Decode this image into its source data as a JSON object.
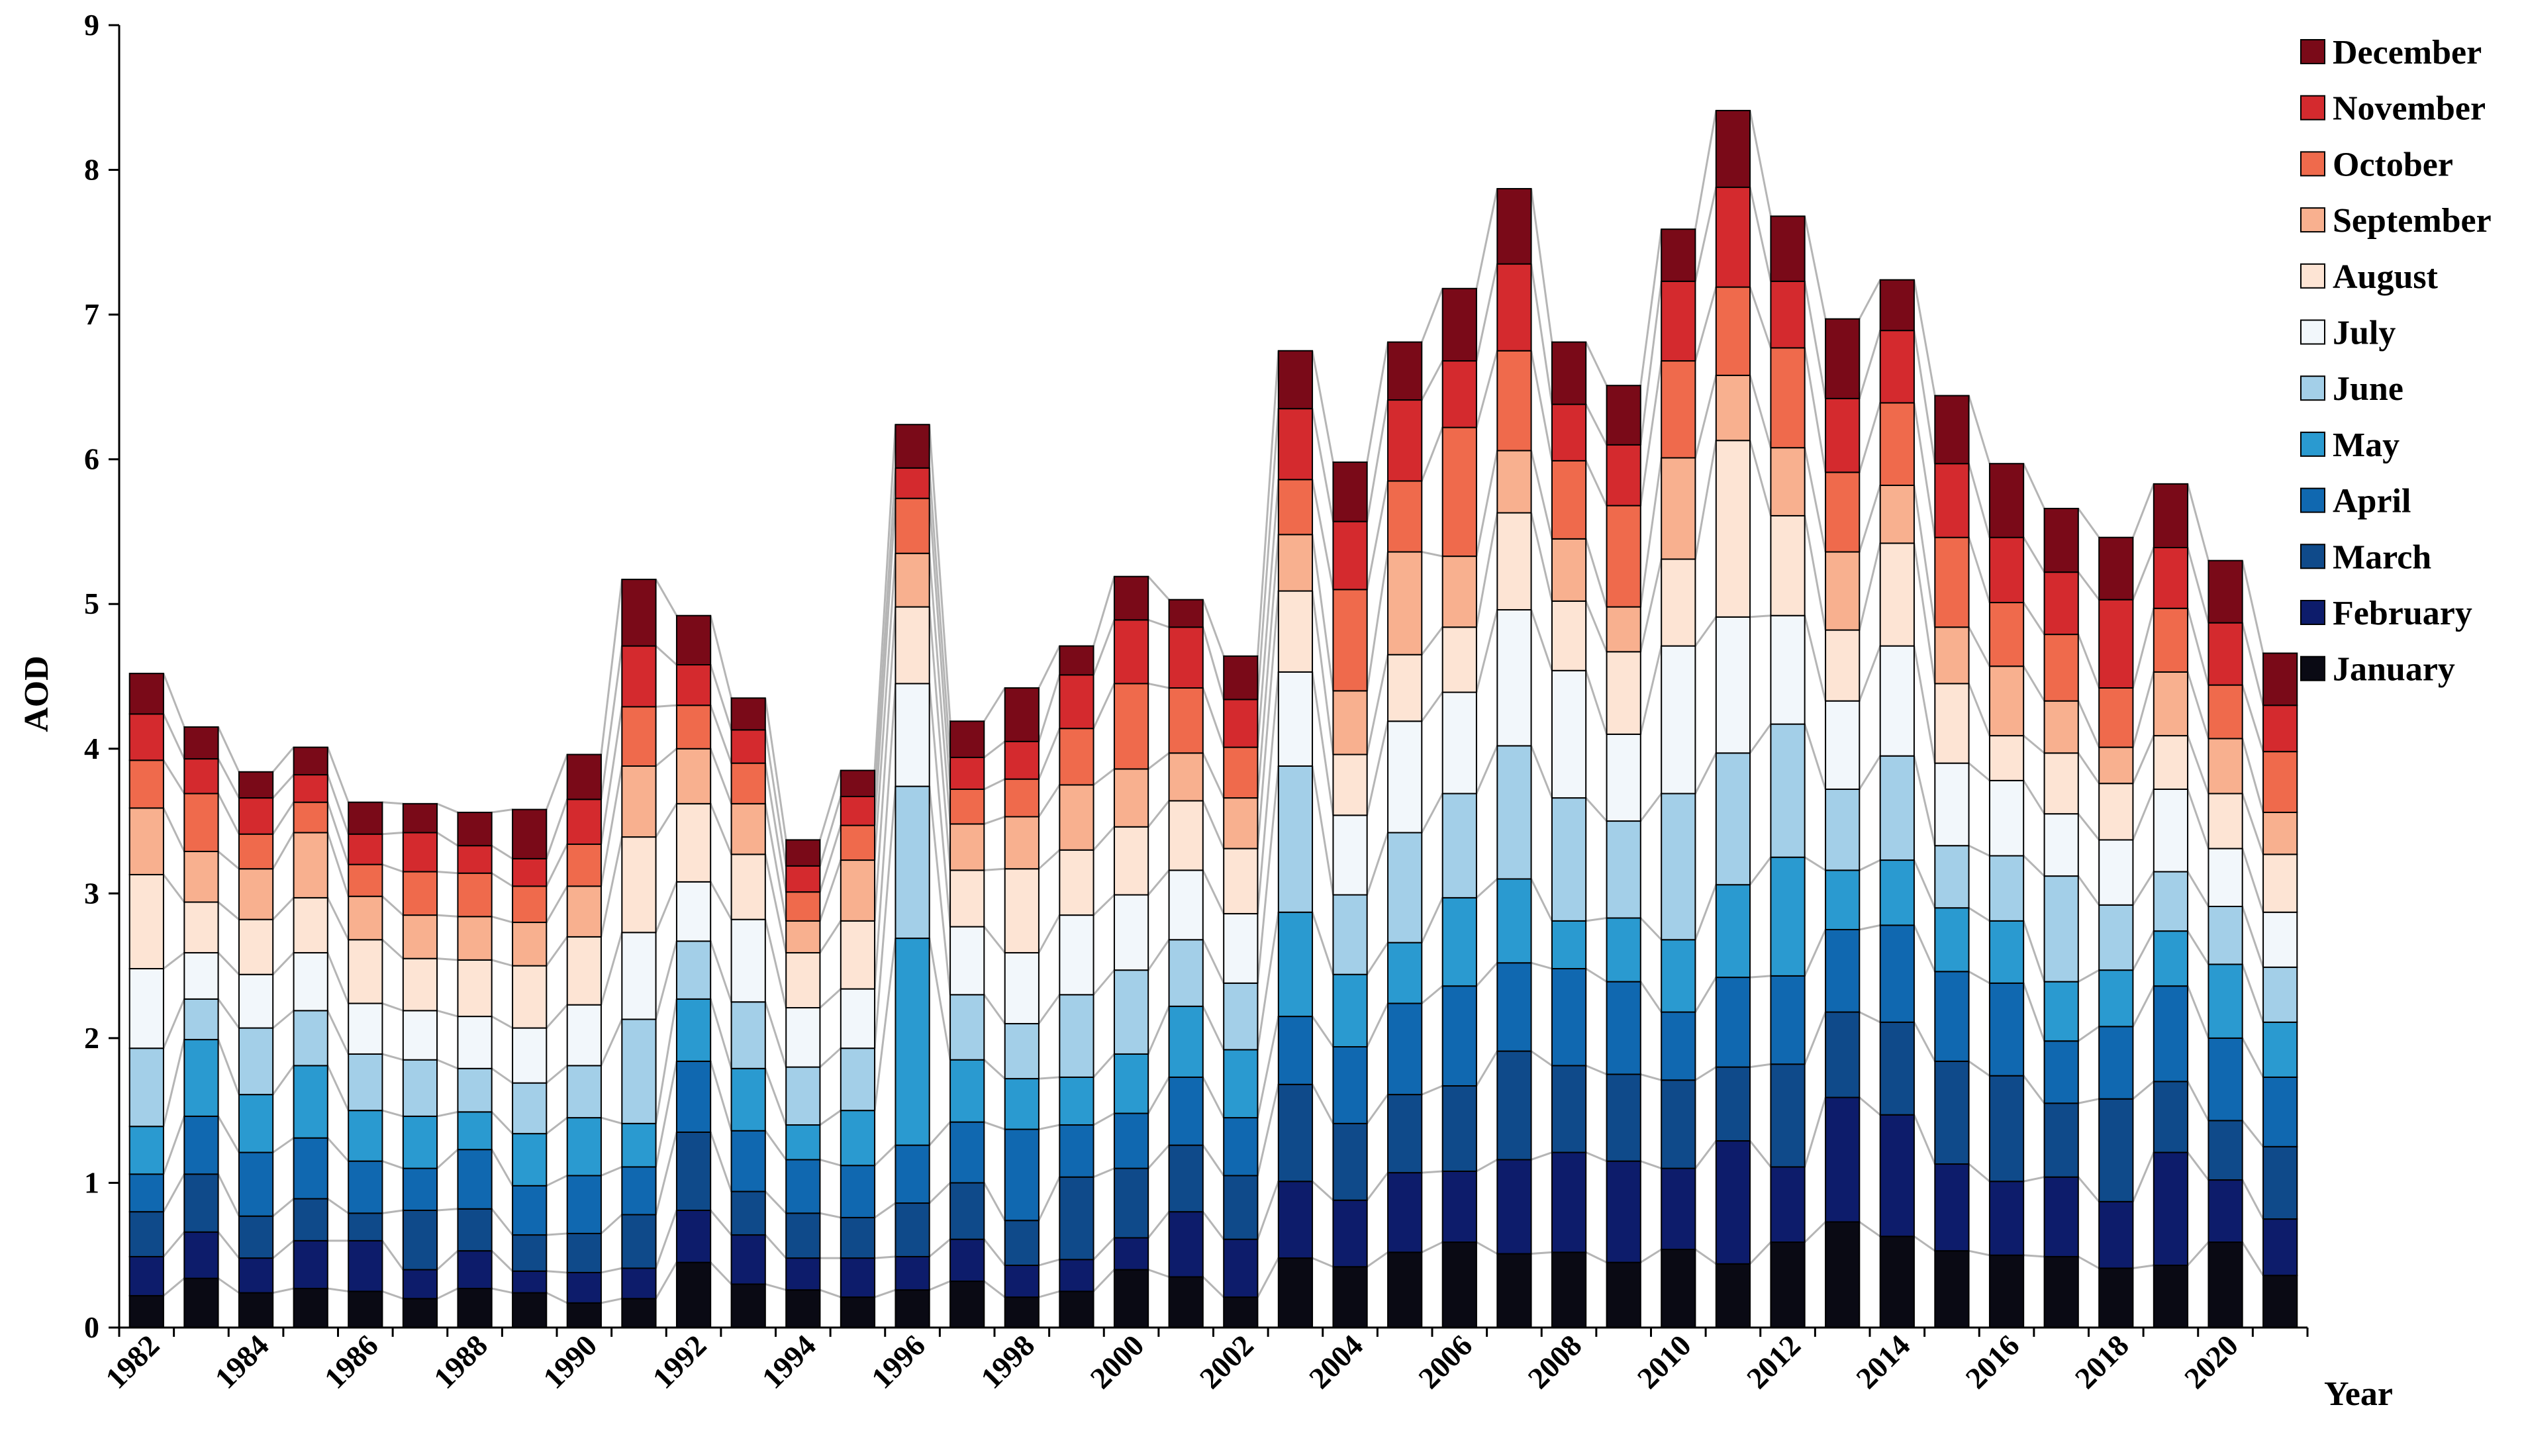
{
  "chart_data": {
    "type": "bar",
    "stacked": true,
    "title": "",
    "xlabel": "Year",
    "ylabel": "AOD",
    "ylim": [
      0,
      9
    ],
    "yticks": [
      "0",
      "1",
      "2",
      "3",
      "4",
      "5",
      "6",
      "7",
      "8",
      "9"
    ],
    "x": [
      1982,
      1983,
      1984,
      1985,
      1986,
      1987,
      1988,
      1989,
      1990,
      1991,
      1992,
      1993,
      1994,
      1995,
      1996,
      1997,
      1998,
      1999,
      2000,
      2001,
      2002,
      2003,
      2004,
      2005,
      2006,
      2007,
      2008,
      2009,
      2010,
      2011,
      2012,
      2013,
      2014,
      2015,
      2016,
      2017,
      2018,
      2019,
      2020,
      2021
    ],
    "xtick_labels": [
      "1982",
      "",
      "1984",
      "",
      "1986",
      "",
      "1988",
      "",
      "1990",
      "",
      "1992",
      "",
      "1994",
      "",
      "1996",
      "",
      "1998",
      "",
      "2000",
      "",
      "2002",
      "",
      "2004",
      "",
      "2006",
      "",
      "2008",
      "",
      "2010",
      "",
      "2012",
      "",
      "2014",
      "",
      "2016",
      "",
      "2018",
      "",
      "2020",
      ""
    ],
    "series_connector_lines": true,
    "connector_color": "#b5b5b5",
    "legend_position": "top-right",
    "series": [
      {
        "name": "January",
        "color": "#0a0a14",
        "values": [
          0.22,
          0.34,
          0.24,
          0.27,
          0.25,
          0.2,
          0.27,
          0.24,
          0.17,
          0.2,
          0.45,
          0.3,
          0.26,
          0.21,
          0.26,
          0.32,
          0.21,
          0.25,
          0.4,
          0.35,
          0.21,
          0.48,
          0.42,
          0.52,
          0.59,
          0.51,
          0.52,
          0.45,
          0.54,
          0.44,
          0.59,
          0.73,
          0.63,
          0.53,
          0.5,
          0.49,
          0.41,
          0.43,
          0.59,
          0.36
        ]
      },
      {
        "name": "February",
        "color": "#0d1c6b",
        "values": [
          0.27,
          0.32,
          0.24,
          0.33,
          0.35,
          0.2,
          0.26,
          0.15,
          0.21,
          0.21,
          0.36,
          0.34,
          0.22,
          0.27,
          0.23,
          0.29,
          0.22,
          0.22,
          0.22,
          0.45,
          0.4,
          0.53,
          0.46,
          0.55,
          0.49,
          0.65,
          0.69,
          0.7,
          0.56,
          0.85,
          0.52,
          0.86,
          0.84,
          0.6,
          0.51,
          0.55,
          0.46,
          0.78,
          0.43,
          0.39
        ]
      },
      {
        "name": "March",
        "color": "#0f4a8a",
        "values": [
          0.31,
          0.4,
          0.29,
          0.29,
          0.19,
          0.41,
          0.29,
          0.25,
          0.27,
          0.37,
          0.54,
          0.3,
          0.31,
          0.28,
          0.37,
          0.39,
          0.31,
          0.57,
          0.48,
          0.46,
          0.44,
          0.67,
          0.53,
          0.54,
          0.59,
          0.75,
          0.6,
          0.6,
          0.61,
          0.51,
          0.71,
          0.59,
          0.64,
          0.71,
          0.73,
          0.51,
          0.71,
          0.49,
          0.41,
          0.5
        ]
      },
      {
        "name": "April",
        "color": "#1068b0",
        "values": [
          0.26,
          0.4,
          0.44,
          0.42,
          0.36,
          0.29,
          0.41,
          0.34,
          0.4,
          0.33,
          0.49,
          0.42,
          0.37,
          0.36,
          0.4,
          0.42,
          0.63,
          0.36,
          0.38,
          0.47,
          0.4,
          0.47,
          0.53,
          0.63,
          0.69,
          0.61,
          0.67,
          0.64,
          0.47,
          0.62,
          0.61,
          0.57,
          0.67,
          0.62,
          0.64,
          0.43,
          0.5,
          0.66,
          0.57,
          0.48
        ]
      },
      {
        "name": "May",
        "color": "#2a9ad0",
        "values": [
          0.33,
          0.53,
          0.4,
          0.5,
          0.35,
          0.36,
          0.26,
          0.36,
          0.4,
          0.3,
          0.43,
          0.43,
          0.24,
          0.38,
          1.43,
          0.43,
          0.35,
          0.33,
          0.41,
          0.49,
          0.47,
          0.72,
          0.5,
          0.42,
          0.61,
          0.58,
          0.33,
          0.44,
          0.5,
          0.64,
          0.82,
          0.41,
          0.45,
          0.44,
          0.43,
          0.41,
          0.39,
          0.38,
          0.51,
          0.38
        ]
      },
      {
        "name": "June",
        "color": "#a3cfe8",
        "values": [
          0.54,
          0.28,
          0.46,
          0.38,
          0.39,
          0.39,
          0.3,
          0.35,
          0.36,
          0.72,
          0.4,
          0.46,
          0.4,
          0.43,
          1.05,
          0.45,
          0.38,
          0.57,
          0.58,
          0.46,
          0.46,
          1.01,
          0.55,
          0.76,
          0.72,
          0.92,
          0.85,
          0.67,
          1.01,
          0.91,
          0.92,
          0.56,
          0.72,
          0.43,
          0.45,
          0.73,
          0.45,
          0.41,
          0.4,
          0.38
        ]
      },
      {
        "name": "July",
        "color": "#f2f7fb",
        "values": [
          0.55,
          0.32,
          0.37,
          0.4,
          0.35,
          0.34,
          0.36,
          0.38,
          0.42,
          0.6,
          0.41,
          0.57,
          0.41,
          0.41,
          0.71,
          0.47,
          0.49,
          0.55,
          0.52,
          0.48,
          0.48,
          0.65,
          0.55,
          0.77,
          0.7,
          0.94,
          0.88,
          0.6,
          1.02,
          0.94,
          0.75,
          0.61,
          0.76,
          0.57,
          0.52,
          0.43,
          0.45,
          0.57,
          0.4,
          0.38
        ]
      },
      {
        "name": "August",
        "color": "#fde4d4",
        "values": [
          0.65,
          0.35,
          0.38,
          0.38,
          0.44,
          0.36,
          0.39,
          0.43,
          0.47,
          0.66,
          0.54,
          0.45,
          0.38,
          0.47,
          0.53,
          0.39,
          0.58,
          0.45,
          0.47,
          0.48,
          0.45,
          0.56,
          0.42,
          0.46,
          0.45,
          0.67,
          0.48,
          0.57,
          0.6,
          1.22,
          0.69,
          0.49,
          0.71,
          0.55,
          0.31,
          0.42,
          0.39,
          0.37,
          0.38,
          0.4
        ]
      },
      {
        "name": "September",
        "color": "#f8b08f",
        "values": [
          0.46,
          0.35,
          0.35,
          0.45,
          0.3,
          0.3,
          0.3,
          0.3,
          0.35,
          0.49,
          0.38,
          0.35,
          0.22,
          0.42,
          0.37,
          0.32,
          0.36,
          0.45,
          0.4,
          0.33,
          0.35,
          0.39,
          0.44,
          0.71,
          0.49,
          0.43,
          0.43,
          0.31,
          0.7,
          0.45,
          0.47,
          0.54,
          0.4,
          0.39,
          0.48,
          0.36,
          0.25,
          0.44,
          0.38,
          0.29
        ]
      },
      {
        "name": "October",
        "color": "#ef6a4c",
        "values": [
          0.33,
          0.4,
          0.24,
          0.21,
          0.22,
          0.3,
          0.3,
          0.25,
          0.29,
          0.41,
          0.3,
          0.28,
          0.2,
          0.24,
          0.38,
          0.24,
          0.26,
          0.39,
          0.59,
          0.45,
          0.35,
          0.38,
          0.7,
          0.49,
          0.89,
          0.69,
          0.54,
          0.7,
          0.67,
          0.61,
          0.69,
          0.55,
          0.57,
          0.62,
          0.44,
          0.46,
          0.41,
          0.44,
          0.37,
          0.42
        ]
      },
      {
        "name": "November",
        "color": "#d42a2e",
        "values": [
          0.32,
          0.24,
          0.25,
          0.19,
          0.21,
          0.27,
          0.19,
          0.19,
          0.31,
          0.42,
          0.28,
          0.23,
          0.18,
          0.2,
          0.21,
          0.22,
          0.26,
          0.37,
          0.44,
          0.42,
          0.33,
          0.49,
          0.47,
          0.56,
          0.46,
          0.6,
          0.39,
          0.42,
          0.55,
          0.69,
          0.46,
          0.51,
          0.5,
          0.51,
          0.45,
          0.43,
          0.61,
          0.42,
          0.43,
          0.32
        ]
      },
      {
        "name": "December",
        "color": "#7a0a18",
        "values": [
          0.28,
          0.22,
          0.18,
          0.19,
          0.22,
          0.2,
          0.23,
          0.34,
          0.31,
          0.46,
          0.34,
          0.22,
          0.18,
          0.18,
          0.3,
          0.25,
          0.37,
          0.2,
          0.3,
          0.19,
          0.3,
          0.4,
          0.41,
          0.4,
          0.5,
          0.52,
          0.43,
          0.41,
          0.36,
          0.53,
          0.45,
          0.55,
          0.35,
          0.47,
          0.51,
          0.44,
          0.43,
          0.44,
          0.43,
          0.36
        ]
      }
    ]
  }
}
